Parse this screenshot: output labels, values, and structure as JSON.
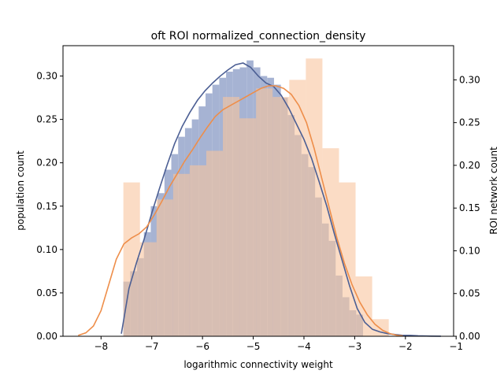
{
  "chart_data": {
    "type": "bar",
    "title": "oft ROI normalized_connection_density",
    "xlabel": "logarithmic connectivity weight",
    "ylabel_left": "population count",
    "ylabel_right": "ROI network count",
    "xlim": [
      -8.75,
      -1.05
    ],
    "ylim_left": [
      0,
      0.335
    ],
    "ylim_right": [
      0,
      0.34
    ],
    "x_ticks": [
      -8,
      -7,
      -6,
      -5,
      -4,
      -3,
      -2,
      -1
    ],
    "x_tick_labels": [
      "−8",
      "−7",
      "−6",
      "−5",
      "−4",
      "−3",
      "−2",
      "−1"
    ],
    "y_ticks": [
      0.0,
      0.05,
      0.1,
      0.15,
      0.2,
      0.25,
      0.3
    ],
    "y_tick_labels": [
      "0.00",
      "0.05",
      "0.10",
      "0.15",
      "0.20",
      "0.25",
      "0.30"
    ],
    "grid": false,
    "series": [
      {
        "axis": "left",
        "color": "#4c5f94",
        "fill": "#a6b3d3",
        "hist": {
          "x_start": -7.56,
          "bin_width": 0.135,
          "values": [
            0.063,
            0.075,
            0.09,
            0.12,
            0.15,
            0.165,
            0.192,
            0.21,
            0.23,
            0.24,
            0.25,
            0.265,
            0.28,
            0.29,
            0.298,
            0.305,
            0.308,
            0.31,
            0.318,
            0.31,
            0.3,
            0.298,
            0.29,
            0.275,
            0.255,
            0.232,
            0.21,
            0.195,
            0.16,
            0.13,
            0.11,
            0.07,
            0.045,
            0.03,
            0.025
          ]
        },
        "kde": {
          "x": [
            -7.6,
            -7.55,
            -7.45,
            -7.3,
            -7.15,
            -7.0,
            -6.85,
            -6.7,
            -6.55,
            -6.4,
            -6.25,
            -6.1,
            -5.95,
            -5.8,
            -5.65,
            -5.5,
            -5.35,
            -5.2,
            -5.05,
            -4.9,
            -4.75,
            -4.6,
            -4.45,
            -4.3,
            -4.15,
            -4.0,
            -3.85,
            -3.7,
            -3.55,
            -3.4,
            -3.25,
            -3.1,
            -2.95,
            -2.8,
            -2.65,
            -2.5,
            -2.35,
            -2.2,
            -2.05,
            -1.9,
            -1.75,
            -1.5,
            -1.3
          ],
          "y": [
            0.003,
            0.02,
            0.055,
            0.085,
            0.112,
            0.142,
            0.17,
            0.197,
            0.222,
            0.242,
            0.258,
            0.272,
            0.283,
            0.292,
            0.3,
            0.307,
            0.313,
            0.315,
            0.31,
            0.3,
            0.292,
            0.288,
            0.278,
            0.263,
            0.245,
            0.227,
            0.205,
            0.178,
            0.15,
            0.118,
            0.088,
            0.058,
            0.032,
            0.016,
            0.008,
            0.005,
            0.003,
            0.002,
            0.001,
            0.001,
            0.0005,
            0.0002,
            0.0001
          ]
        }
      },
      {
        "axis": "right",
        "color": "#ee8e4a",
        "fill": "#f8c59e",
        "hist": {
          "x_start": -7.56,
          "bin_width": 0.327,
          "values": [
            0.18,
            0.11,
            0.16,
            0.19,
            0.2,
            0.217,
            0.28,
            0.255,
            0.29,
            0.28,
            0.3,
            0.325,
            0.22,
            0.18,
            0.07,
            0.02
          ]
        },
        "kde": {
          "x": [
            -8.45,
            -8.3,
            -8.15,
            -8.0,
            -7.85,
            -7.7,
            -7.55,
            -7.4,
            -7.25,
            -7.1,
            -6.95,
            -6.8,
            -6.65,
            -6.5,
            -6.35,
            -6.2,
            -6.05,
            -5.9,
            -5.75,
            -5.6,
            -5.45,
            -5.3,
            -5.15,
            -5.0,
            -4.85,
            -4.7,
            -4.55,
            -4.4,
            -4.25,
            -4.1,
            -3.95,
            -3.8,
            -3.65,
            -3.5,
            -3.35,
            -3.2,
            -3.05,
            -2.9,
            -2.75,
            -2.6,
            -2.45,
            -2.3,
            -2.15,
            -2.05
          ],
          "y": [
            0.001,
            0.004,
            0.012,
            0.03,
            0.06,
            0.09,
            0.108,
            0.115,
            0.12,
            0.128,
            0.142,
            0.158,
            0.175,
            0.19,
            0.205,
            0.218,
            0.232,
            0.245,
            0.257,
            0.265,
            0.27,
            0.275,
            0.28,
            0.285,
            0.29,
            0.293,
            0.293,
            0.29,
            0.283,
            0.27,
            0.25,
            0.22,
            0.185,
            0.15,
            0.115,
            0.085,
            0.06,
            0.04,
            0.025,
            0.014,
            0.007,
            0.003,
            0.001,
            0.0005
          ]
        }
      }
    ]
  }
}
